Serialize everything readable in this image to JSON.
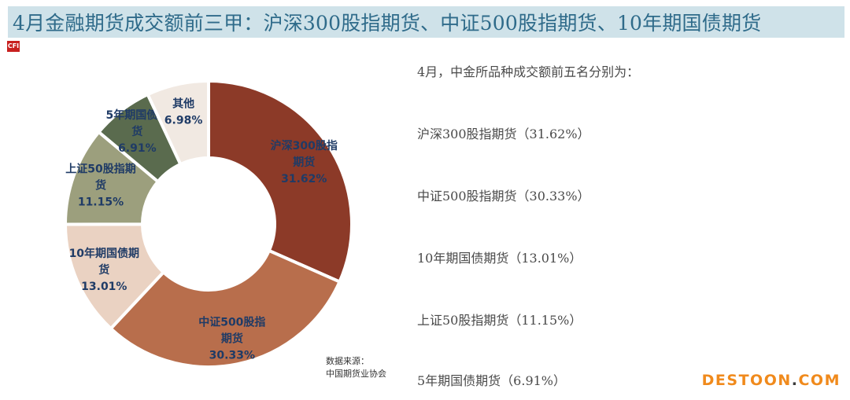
{
  "header": {
    "title": "4月金融期货成交额前三甲：沪深300股指期货、中证500股指期货、10年期国债期货",
    "logo_text": "CFI"
  },
  "chart_data": {
    "type": "pie",
    "donut": true,
    "slices": [
      {
        "label_lines": [
          "沪深300股指",
          "期货"
        ],
        "value": 31.62,
        "value_text": "31.62%",
        "color": "#8c3a28",
        "label_color": "#1f3b66"
      },
      {
        "label_lines": [
          "中证500股指",
          "期货"
        ],
        "value": 30.33,
        "value_text": "30.33%",
        "color": "#b86e4c",
        "label_color": "#1f3b66"
      },
      {
        "label_lines": [
          "10年期国债期",
          "货"
        ],
        "value": 13.01,
        "value_text": "13.01%",
        "color": "#ead2c2",
        "label_color": "#1f3b66"
      },
      {
        "label_lines": [
          "上证50股指期",
          "货"
        ],
        "value": 11.15,
        "value_text": "11.15%",
        "color": "#9c9f7d",
        "label_color": "#1f3b66"
      },
      {
        "label_lines": [
          "5年期国债期",
          "货"
        ],
        "value": 6.91,
        "value_text": "6.91%",
        "color": "#5a6b4e",
        "label_color": "#1f3b66"
      },
      {
        "label_lines": [
          "其他"
        ],
        "value": 6.98,
        "value_text": "6.98%",
        "color": "#f1e9e2",
        "label_color": "#1f3b66"
      }
    ]
  },
  "source": {
    "line1": "数据来源：",
    "line2": "中国期货业协会"
  },
  "ranking": {
    "intro": "4月，中金所品种成交额前五名分别为：",
    "items": [
      "沪深300股指期货（31.62%）",
      "中证500股指期货（30.33%）",
      "10年期国债期货（13.01%）",
      "上证50股指期货（11.15%）",
      "5年期国债期货（6.91%）"
    ]
  },
  "watermark": {
    "brand": "DESTOON",
    "dot": ".",
    "tld": "COM",
    "brand_color": "#f08a1c",
    "dot_color": "#3a3a3a"
  }
}
